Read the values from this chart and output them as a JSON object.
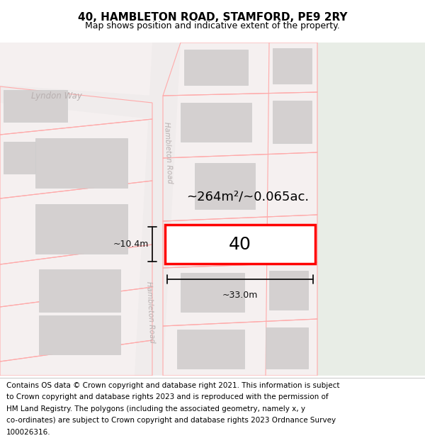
{
  "title": "40, HAMBLETON ROAD, STAMFORD, PE9 2RY",
  "subtitle": "Map shows position and indicative extent of the property.",
  "footer_lines": [
    "Contains OS data © Crown copyright and database right 2021. This information is subject",
    "to Crown copyright and database rights 2023 and is reproduced with the permission of",
    "HM Land Registry. The polygons (including the associated geometry, namely x, y",
    "co-ordinates) are subject to Crown copyright and database rights 2023 Ordnance Survey",
    "100026316."
  ],
  "area_text": "~264m²/~0.065ac.",
  "width_text": "~33.0m",
  "height_text": "~10.4m",
  "plot_number": "40",
  "title_fontsize": 11,
  "subtitle_fontsize": 9,
  "footer_fontsize": 7.5,
  "bg_main": "#f5f0f0",
  "bg_green": "#e8ede6",
  "road_fill": "#f0ecec",
  "bldg_outline": "#ffaaaa",
  "bldg_fill_outer": "#ede9e9",
  "bldg_fill_inner": "#d4d0d0",
  "plot_outline": "#ff0000",
  "plot_fill": "#ffffff",
  "road_label_color": "#b8b0b0",
  "dim_color": "#111111"
}
